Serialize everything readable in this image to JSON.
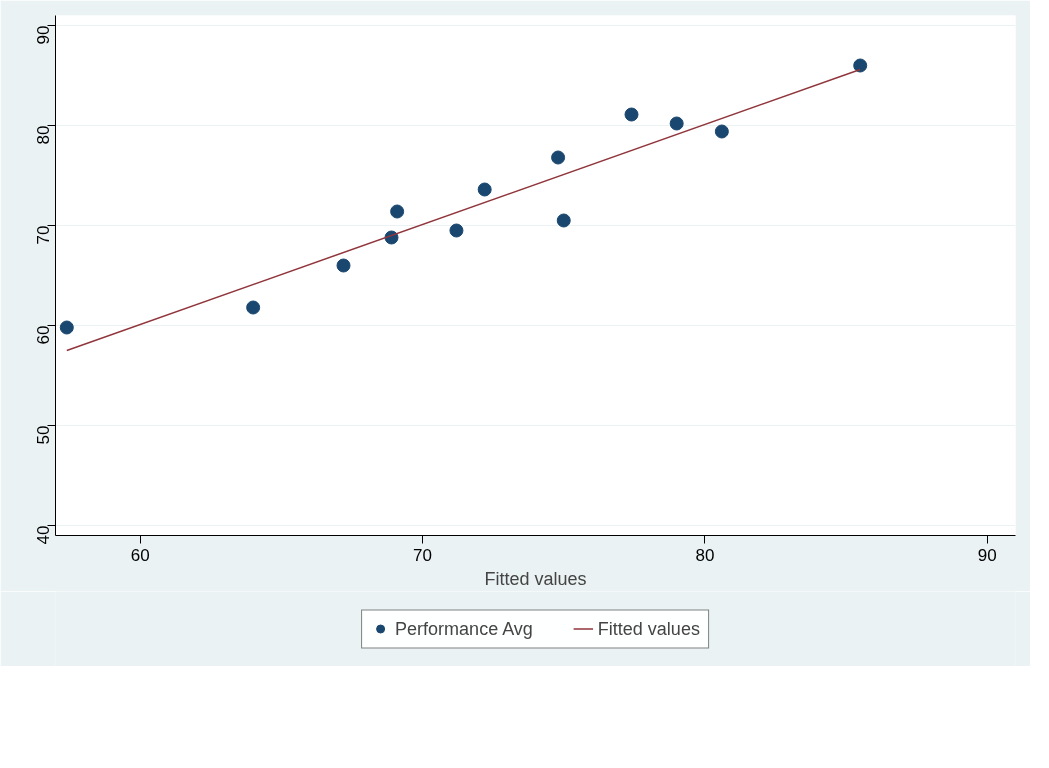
{
  "chart_data": {
    "type": "scatter",
    "xlabel": "Fitted values",
    "xlim": [
      57,
      91
    ],
    "xticks": [
      60,
      70,
      80,
      90
    ],
    "ylim": [
      39,
      91
    ],
    "yticks": [
      40,
      50,
      60,
      70,
      80,
      90
    ],
    "grid": "y",
    "legend": "bottom",
    "series": [
      {
        "name": "Performance Avg",
        "marker": "circle",
        "color": "#1a476f",
        "x": [
          57.4,
          64.0,
          67.2,
          68.9,
          69.1,
          71.2,
          72.2,
          74.8,
          75.0,
          77.4,
          79.0,
          80.6,
          85.5
        ],
        "values": [
          59.8,
          61.8,
          66.0,
          68.8,
          71.4,
          69.5,
          73.6,
          76.8,
          70.5,
          81.1,
          80.2,
          79.4,
          86.0
        ]
      },
      {
        "name": "Fitted values",
        "type": "line",
        "color": "#90353b",
        "x": [
          57.4,
          85.5
        ],
        "values": [
          57.5,
          85.6
        ]
      }
    ]
  }
}
